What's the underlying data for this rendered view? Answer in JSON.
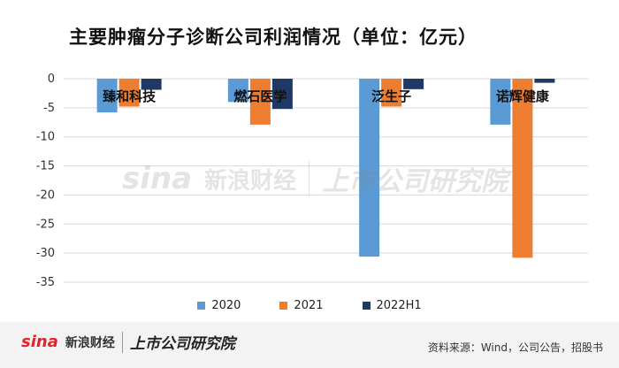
{
  "title": "主要肿瘤分子诊断公司利润情况（单位：亿元）",
  "source": "资料来源：Wind，公司公告，招股书",
  "branding": {
    "sina": "sina",
    "sina_cn": "新浪财经",
    "research": "上市公司研究院"
  },
  "colors": {
    "series_2020": "#5b9bd5",
    "series_2021": "#ed7d31",
    "series_2022H1": "#203864",
    "grid": "#d9d9d9"
  },
  "chart_data": {
    "type": "bar",
    "categories": [
      "臻和科技",
      "燃石医学",
      "泛生子",
      "诺辉健康"
    ],
    "series": [
      {
        "name": "2020",
        "values": [
          -5.8,
          -4.0,
          -30.6,
          -7.9
        ]
      },
      {
        "name": "2021",
        "values": [
          -4.8,
          -7.9,
          -4.8,
          -30.8
        ]
      },
      {
        "name": "2022H1",
        "values": [
          -1.9,
          -5.2,
          -1.8,
          -0.7
        ]
      }
    ],
    "ylim": [
      -35,
      0
    ],
    "yticks": [
      0,
      -5,
      -10,
      -15,
      -20,
      -25,
      -30,
      -35
    ],
    "grid": true,
    "legend_position": "bottom"
  }
}
